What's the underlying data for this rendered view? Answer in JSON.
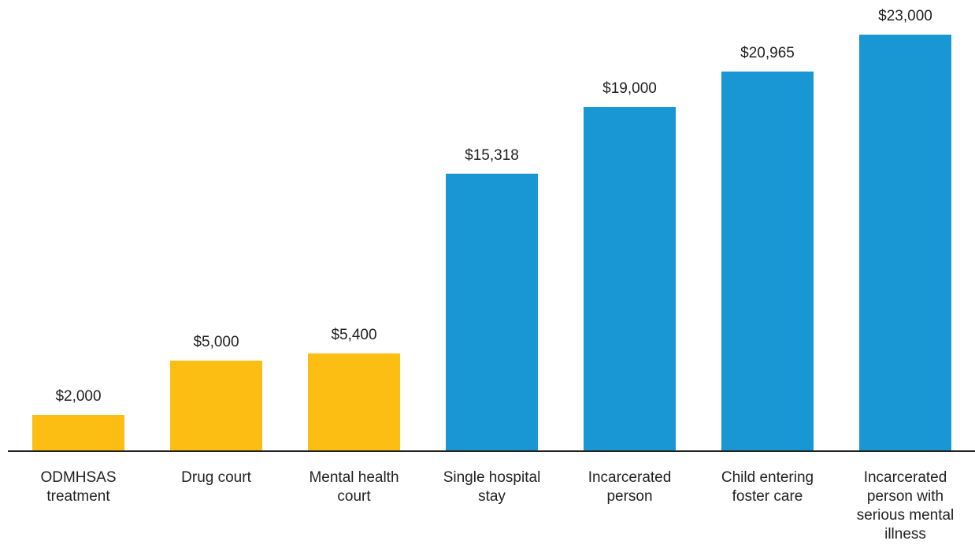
{
  "chart_data": {
    "type": "bar",
    "categories": [
      "ODMHSAS\ntreatment",
      "Drug court",
      "Mental health\ncourt",
      "Single hospital\nstay",
      "Incarcerated\nperson",
      "Child entering\nfoster care",
      "Incarcerated\nperson with\nserious mental\nillness"
    ],
    "values": [
      2000,
      5000,
      5400,
      15318,
      19000,
      20965,
      23000
    ],
    "value_labels": [
      "$2,000",
      "$5,000",
      "$5,400",
      "$15,318",
      "$19,000",
      "$20,965",
      "$23,000"
    ],
    "colors": [
      "#fdbe14",
      "#fdbe14",
      "#fdbe14",
      "#1996d4",
      "#1996d4",
      "#1996d4",
      "#1996d4"
    ],
    "ylim": [
      0,
      23000
    ]
  }
}
